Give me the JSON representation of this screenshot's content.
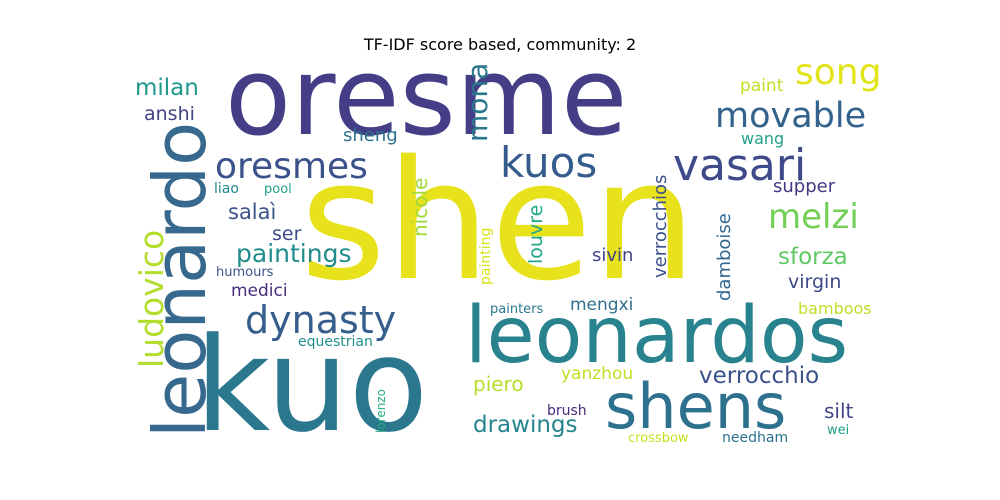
{
  "title": "TF-IDF score based, community: 2",
  "words": [
    {
      "text": "shen",
      "color": "#e8e21c"
    },
    {
      "text": "oresme",
      "color": "#433e85"
    },
    {
      "text": "kuo",
      "color": "#2b788e"
    },
    {
      "text": "leonardos",
      "color": "#28838e"
    },
    {
      "text": "leonardo",
      "color": "#36698d"
    },
    {
      "text": "shens",
      "color": "#2d718e"
    },
    {
      "text": "vasari",
      "color": "#3e4a89"
    },
    {
      "text": "kuos",
      "color": "#365c8d"
    },
    {
      "text": "oresmes",
      "color": "#3b518b"
    },
    {
      "text": "dynasty",
      "color": "#355e8d"
    },
    {
      "text": "ludovico",
      "color": "#b2dd2d"
    },
    {
      "text": "movable",
      "color": "#33628d"
    },
    {
      "text": "song",
      "color": "#e2e418"
    },
    {
      "text": "melzi",
      "color": "#73d056"
    },
    {
      "text": "mona",
      "color": "#2a778e"
    },
    {
      "text": "milan",
      "color": "#1f988b"
    },
    {
      "text": "paintings",
      "color": "#228c8d"
    },
    {
      "text": "sforza",
      "color": "#5ec962"
    },
    {
      "text": "verrocchio",
      "color": "#3b518b"
    },
    {
      "text": "drawings",
      "color": "#25848e"
    },
    {
      "text": "salaì",
      "color": "#3b528b"
    },
    {
      "text": "anshi",
      "color": "#414487"
    },
    {
      "text": "sheng",
      "color": "#2c728e"
    },
    {
      "text": "nicole",
      "color": "#a2da37"
    },
    {
      "text": "louvre",
      "color": "#22a785"
    },
    {
      "text": "verrocchios",
      "color": "#3b518b"
    },
    {
      "text": "damboise",
      "color": "#31668e"
    },
    {
      "text": "virgin",
      "color": "#3e4989"
    },
    {
      "text": "supper",
      "color": "#443a83"
    },
    {
      "text": "paint",
      "color": "#c0df25"
    },
    {
      "text": "wang",
      "color": "#1fa188"
    },
    {
      "text": "ser",
      "color": "#3e4c8a"
    },
    {
      "text": "medici",
      "color": "#472d7b"
    },
    {
      "text": "sivin",
      "color": "#414487"
    },
    {
      "text": "piero",
      "color": "#b5de2b"
    },
    {
      "text": "mengxi",
      "color": "#2e6f8e"
    },
    {
      "text": "yanzhou",
      "color": "#c2df23"
    },
    {
      "text": "bamboos",
      "color": "#bddf26"
    },
    {
      "text": "silt",
      "color": "#404588"
    },
    {
      "text": "liao",
      "color": "#24868e"
    },
    {
      "text": "pool",
      "color": "#1f9e89"
    },
    {
      "text": "painting",
      "color": "#d8e219"
    },
    {
      "text": "humours",
      "color": "#3b528b"
    },
    {
      "text": "painters",
      "color": "#2a778e"
    },
    {
      "text": "equestrian",
      "color": "#21908d"
    },
    {
      "text": "lorenzo",
      "color": "#25ab82"
    },
    {
      "text": "brush",
      "color": "#472a7a"
    },
    {
      "text": "crossbow",
      "color": "#c8e020"
    },
    {
      "text": "needham",
      "color": "#2c718e"
    },
    {
      "text": "wei",
      "color": "#1fa187"
    }
  ]
}
